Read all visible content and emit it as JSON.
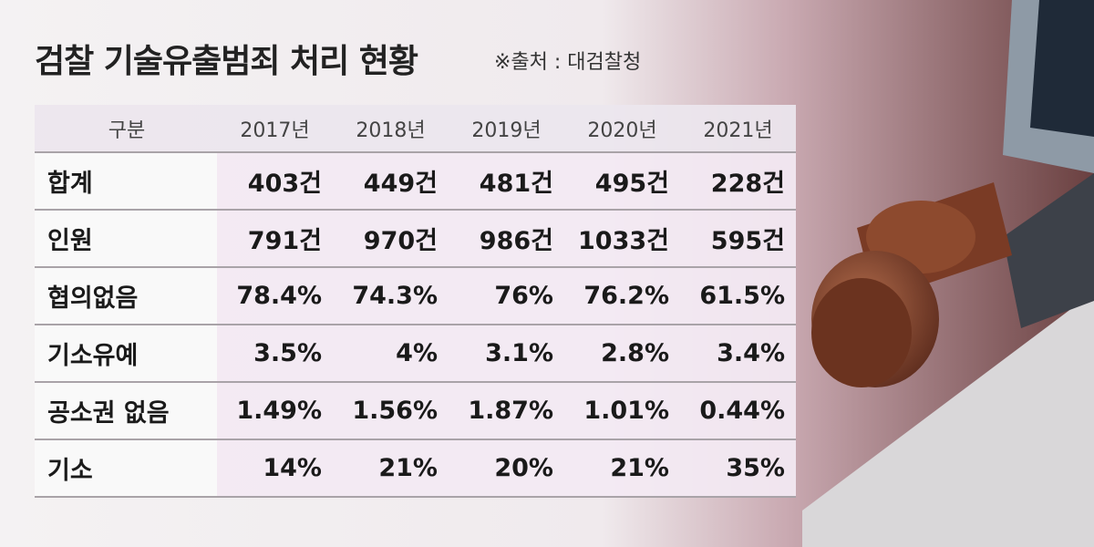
{
  "header": {
    "title": "검찰 기술유출범죄 처리 현황",
    "source": "※출처 : 대검찰청"
  },
  "table": {
    "columns": [
      "구분",
      "2017년",
      "2018년",
      "2019년",
      "2020년",
      "2021년"
    ],
    "rows": [
      [
        "합계",
        "403건",
        "449건",
        "481건",
        "495건",
        "228건"
      ],
      [
        "인원",
        "791건",
        "970건",
        "986건",
        "1033건",
        "595건"
      ],
      [
        "협의없음",
        "78.4%",
        "74.3%",
        "76%",
        "76.2%",
        "61.5%"
      ],
      [
        "기소유예",
        "3.5%",
        "4%",
        "3.1%",
        "2.8%",
        "3.4%"
      ],
      [
        "공소권 없음",
        "1.49%",
        "1.56%",
        "1.87%",
        "1.01%",
        "0.44%"
      ],
      [
        "기소",
        "14%",
        "21%",
        "20%",
        "21%",
        "35%"
      ]
    ]
  }
}
